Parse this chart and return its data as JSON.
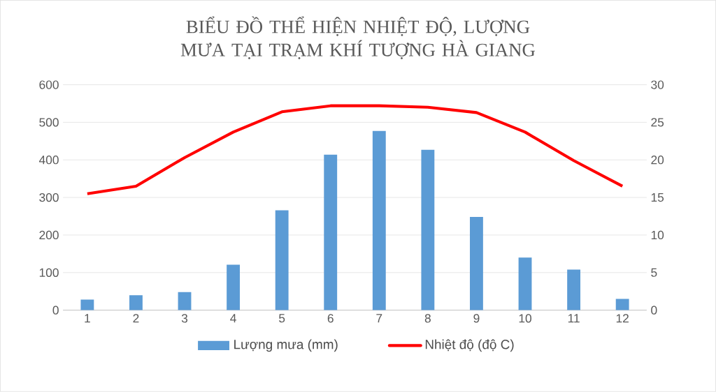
{
  "chart_data": {
    "type": "bar",
    "title": "BIỂU ĐỒ THỂ HIỆN NHIỆT ĐỘ, LƯỢNG MƯA TẠI TRẠM KHÍ TƯỢNG HÀ GIANG",
    "categories": [
      "1",
      "2",
      "3",
      "4",
      "5",
      "6",
      "7",
      "8",
      "9",
      "10",
      "11",
      "12"
    ],
    "series": [
      {
        "name": "Lượng mưa (mm)",
        "color": "#5b9bd5",
        "values": [
          28,
          40,
          48,
          121,
          266,
          414,
          477,
          427,
          248,
          140,
          108,
          30
        ]
      },
      {
        "name": "Nhiệt độ (độ C)",
        "type": "line",
        "axis": "y2",
        "color": "#ff0000",
        "values": [
          15.5,
          16.5,
          20.3,
          23.7,
          26.4,
          27.2,
          27.2,
          27.0,
          26.3,
          23.7,
          19.9,
          16.5
        ]
      }
    ],
    "ylim": [
      0,
      600
    ],
    "yticks": [
      0,
      100,
      200,
      300,
      400,
      500,
      600
    ],
    "y2lim": [
      0,
      30
    ],
    "y2ticks": [
      0,
      5,
      10,
      15,
      20,
      25,
      30
    ],
    "grid": "y",
    "legend": "bottom",
    "marker": "none"
  }
}
